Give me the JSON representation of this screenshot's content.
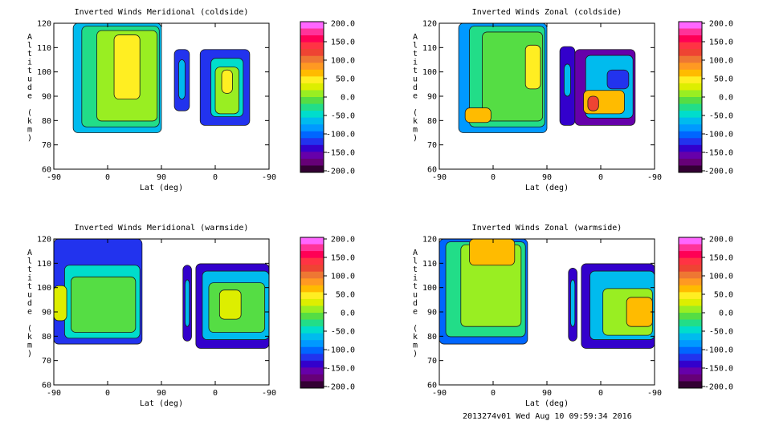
{
  "footer": "2013274v01 Wed Aug 10 09:59:34 2016",
  "colorbar": {
    "ticks": [
      "200.0",
      "150.0",
      "100.0",
      "50.0",
      "0.0",
      "-50.0",
      "-100.0",
      "-150.0",
      "-200.0"
    ],
    "colors": [
      "#ff66ff",
      "#ff3399",
      "#ff0055",
      "#ff3344",
      "#ee4433",
      "#ee7733",
      "#ff9922",
      "#ffbb00",
      "#ffee22",
      "#ddee00",
      "#99ee22",
      "#55dd44",
      "#22dd88",
      "#00ddcc",
      "#00bbee",
      "#0099ff",
      "#0066ff",
      "#2233ee",
      "#3300cc",
      "#6600aa",
      "#660077",
      "#330033"
    ]
  },
  "chart_data": [
    {
      "type": "heatmap",
      "title": "Inverted Winds Meridional (coldside)",
      "xlabel": "Lat (deg)",
      "ylabel": "Altitude (km)",
      "xticks": [
        "-90",
        "0",
        "90",
        "0",
        "-90"
      ],
      "yticks": [
        "120",
        "110",
        "100",
        "90",
        "80",
        "70",
        "60"
      ],
      "ylim": [
        60,
        120
      ],
      "zlim": [
        -200,
        200
      ]
    },
    {
      "type": "heatmap",
      "title": "Inverted Winds Zonal (coldside)",
      "xlabel": "Lat (deg)",
      "ylabel": "Altitude (km)",
      "xticks": [
        "-90",
        "0",
        "90",
        "0",
        "-90"
      ],
      "yticks": [
        "120",
        "110",
        "100",
        "90",
        "80",
        "70",
        "60"
      ],
      "ylim": [
        60,
        120
      ],
      "zlim": [
        -200,
        200
      ]
    },
    {
      "type": "heatmap",
      "title": "Inverted Winds Meridional (warmside)",
      "xlabel": "Lat (deg)",
      "ylabel": "Altitude (km)",
      "xticks": [
        "-90",
        "0",
        "90",
        "0",
        "-90"
      ],
      "yticks": [
        "120",
        "110",
        "100",
        "90",
        "80",
        "70",
        "60"
      ],
      "ylim": [
        60,
        120
      ],
      "zlim": [
        -200,
        200
      ]
    },
    {
      "type": "heatmap",
      "title": "Inverted Winds Zonal (warmside)",
      "xlabel": "Lat (deg)",
      "ylabel": "Altitude (km)",
      "xticks": [
        "-90",
        "0",
        "90",
        "0",
        "-90"
      ],
      "yticks": [
        "120",
        "110",
        "100",
        "90",
        "80",
        "70",
        "60"
      ],
      "ylim": [
        60,
        120
      ],
      "zlim": [
        -200,
        200
      ]
    }
  ]
}
